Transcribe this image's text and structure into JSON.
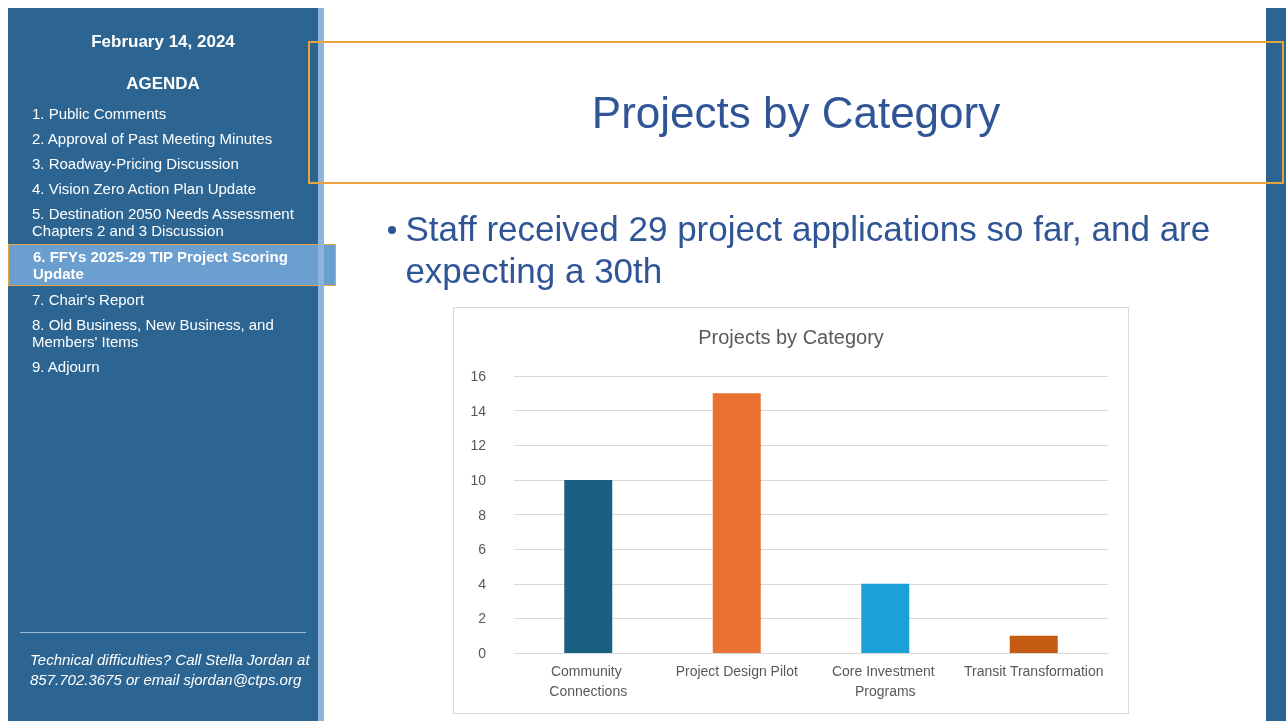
{
  "chart_data": {
    "type": "bar",
    "title": "Projects by Category",
    "categories": [
      "Community Connections",
      "Project Design Pilot",
      "Core Investment Programs",
      "Transit Transformation"
    ],
    "values": [
      10,
      15,
      4,
      1
    ],
    "colors": [
      "#185f80",
      "#e97232",
      "#1ba1d8",
      "#c55a11"
    ],
    "ylim": [
      0,
      16
    ],
    "yticks": [
      0,
      2,
      4,
      6,
      8,
      10,
      12,
      14,
      16
    ],
    "grid": "y",
    "annotations": [
      "February 14, 2024",
      "AGENDA",
      "1. Public Comments",
      "2. Approval of Past Meeting Minutes",
      "3. Roadway-Pricing Discussion",
      "4. Vision Zero Action Plan Update",
      "5. Destination 2050 Needs Assessment Chapters 2 and 3 Discussion",
      "6. FFYs 2025-29 TIP Project Scoring Update",
      "7. Chair's Report",
      "8. Old Business, New Business, and Members' Items",
      "9. Adjourn",
      "Technical difficulties? Call Stella Jordan at 857.702.3675 or email sjordan@ctps.org",
      "Projects by Category",
      "Staff received 29 project applications so far, and are expecting a 30th"
    ]
  }
}
